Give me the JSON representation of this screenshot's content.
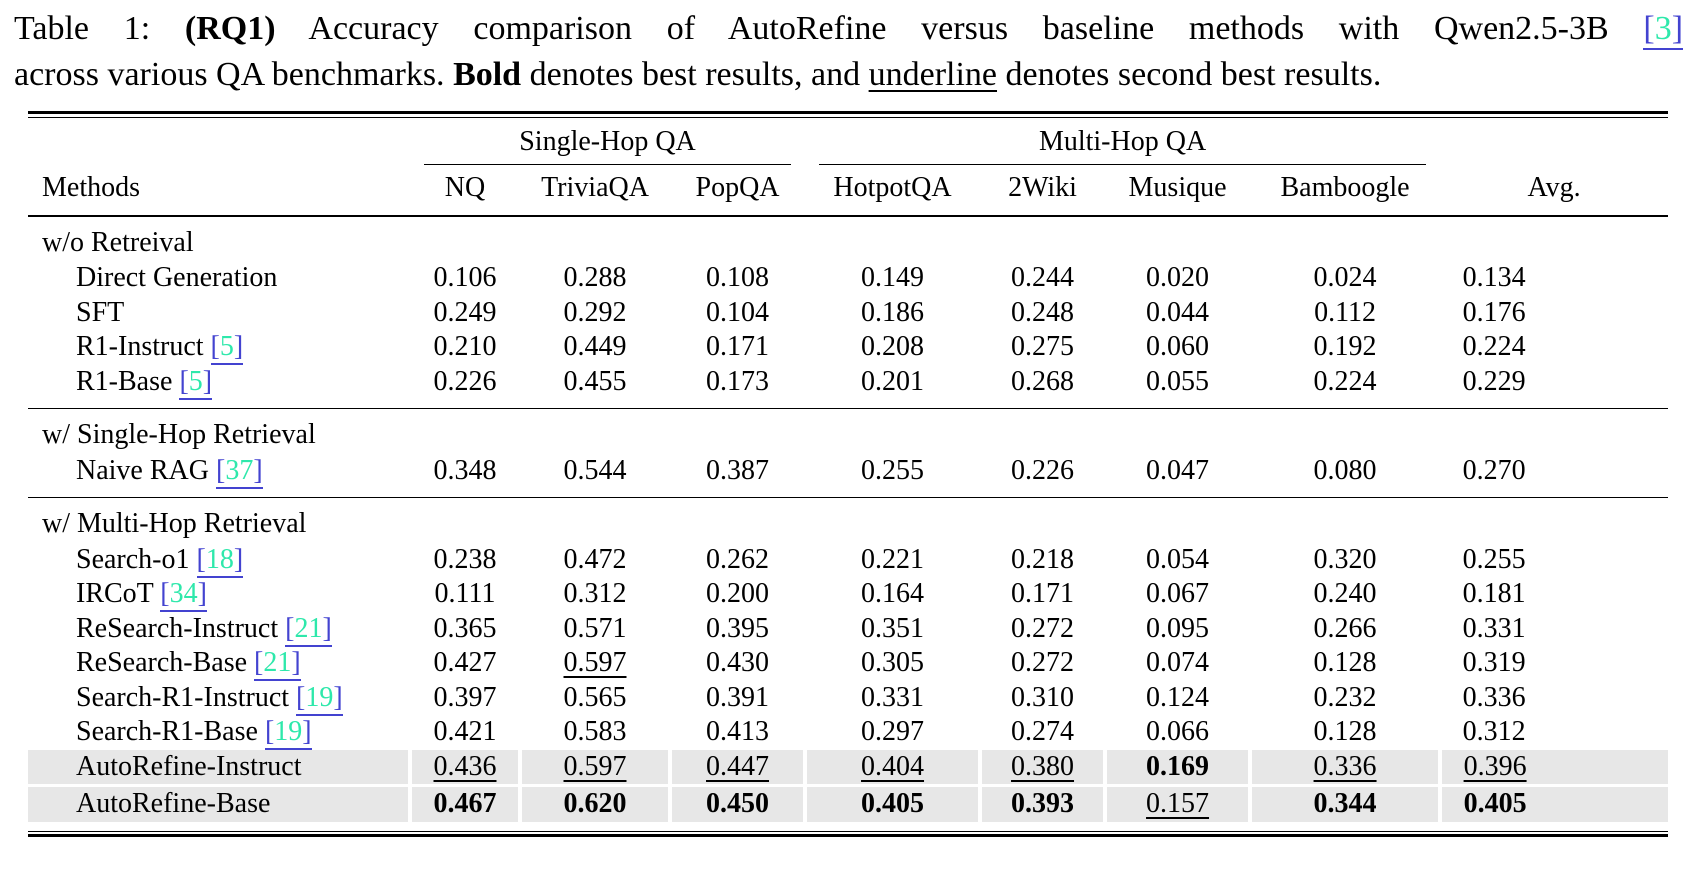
{
  "caption": {
    "label": "Table 1:",
    "rq": "(RQ1)",
    "text1": "Accuracy comparison of AutoRefine versus baseline methods with Qwen2.5-3B",
    "cite": {
      "open": "[",
      "num": "3",
      "close": "]"
    },
    "text2": "across various QA benchmarks.",
    "bold_term": "Bold",
    "text3": "denotes best results, and",
    "underline_term": "underline",
    "text4": "denotes second best results."
  },
  "table": {
    "group_headers": [
      {
        "label": "Single-Hop QA",
        "colspan": 3
      },
      {
        "label": "Multi-Hop QA",
        "colspan": 4
      }
    ],
    "columns": [
      "Methods",
      "NQ",
      "TriviaQA",
      "PopQA",
      "HotpotQA",
      "2Wiki",
      "Musique",
      "Bamboogle",
      "Avg."
    ],
    "cite_brackets": {
      "open": "[",
      "close": "]"
    },
    "colors": {
      "highlight_row": "#e7e7e7",
      "cite_bracket": "#4343d0",
      "cite_number": "#2ee8ab",
      "cite_underline": "#4343d0"
    },
    "sections": [
      {
        "header": "w/o Retreival",
        "rows": [
          {
            "method": "Direct Generation",
            "values": [
              "0.106",
              "0.288",
              "0.108",
              "0.149",
              "0.244",
              "0.020",
              "0.024",
              "0.134"
            ]
          },
          {
            "method": "SFT",
            "values": [
              "0.249",
              "0.292",
              "0.104",
              "0.186",
              "0.248",
              "0.044",
              "0.112",
              "0.176"
            ]
          },
          {
            "method": "R1-Instruct",
            "cite": "5",
            "values": [
              "0.210",
              "0.449",
              "0.171",
              "0.208",
              "0.275",
              "0.060",
              "0.192",
              "0.224"
            ]
          },
          {
            "method": "R1-Base",
            "cite": "5",
            "values": [
              "0.226",
              "0.455",
              "0.173",
              "0.201",
              "0.268",
              "0.055",
              "0.224",
              "0.229"
            ]
          }
        ]
      },
      {
        "header": "w/ Single-Hop Retrieval",
        "rows": [
          {
            "method": "Naive RAG",
            "cite": "37",
            "values": [
              "0.348",
              "0.544",
              "0.387",
              "0.255",
              "0.226",
              "0.047",
              "0.080",
              "0.270"
            ]
          }
        ]
      },
      {
        "header": "w/ Multi-Hop Retrieval",
        "rows": [
          {
            "method": "Search-o1",
            "cite": "18",
            "values": [
              "0.238",
              "0.472",
              "0.262",
              "0.221",
              "0.218",
              "0.054",
              "0.320",
              "0.255"
            ]
          },
          {
            "method": "IRCoT",
            "cite": "34",
            "values": [
              "0.111",
              "0.312",
              "0.200",
              "0.164",
              "0.171",
              "0.067",
              "0.240",
              "0.181"
            ]
          },
          {
            "method": "ReSearch-Instruct",
            "cite": "21",
            "values": [
              "0.365",
              "0.571",
              "0.395",
              "0.351",
              "0.272",
              "0.095",
              "0.266",
              "0.331"
            ]
          },
          {
            "method": "ReSearch-Base",
            "cite": "21",
            "values": [
              "0.427",
              "0.597",
              "0.430",
              "0.305",
              "0.272",
              "0.074",
              "0.128",
              "0.319"
            ],
            "styles": [
              "",
              "u",
              "",
              "",
              "",
              "",
              "",
              ""
            ]
          },
          {
            "method": "Search-R1-Instruct",
            "cite": "19",
            "values": [
              "0.397",
              "0.565",
              "0.391",
              "0.331",
              "0.310",
              "0.124",
              "0.232",
              "0.336"
            ]
          },
          {
            "method": "Search-R1-Base",
            "cite": "19",
            "values": [
              "0.421",
              "0.583",
              "0.413",
              "0.297",
              "0.274",
              "0.066",
              "0.128",
              "0.312"
            ]
          },
          {
            "method": "AutoRefine-Instruct",
            "highlight": true,
            "values": [
              "0.436",
              "0.597",
              "0.447",
              "0.404",
              "0.380",
              "0.169",
              "0.336",
              "0.396"
            ],
            "styles": [
              "u",
              "u",
              "u",
              "u",
              "u",
              "b",
              "u",
              "u"
            ]
          },
          {
            "method": "AutoRefine-Base",
            "highlight": true,
            "values": [
              "0.467",
              "0.620",
              "0.450",
              "0.405",
              "0.393",
              "0.157",
              "0.344",
              "0.405"
            ],
            "styles": [
              "b",
              "b",
              "b",
              "b",
              "b",
              "u",
              "b",
              "b"
            ]
          }
        ]
      }
    ]
  }
}
